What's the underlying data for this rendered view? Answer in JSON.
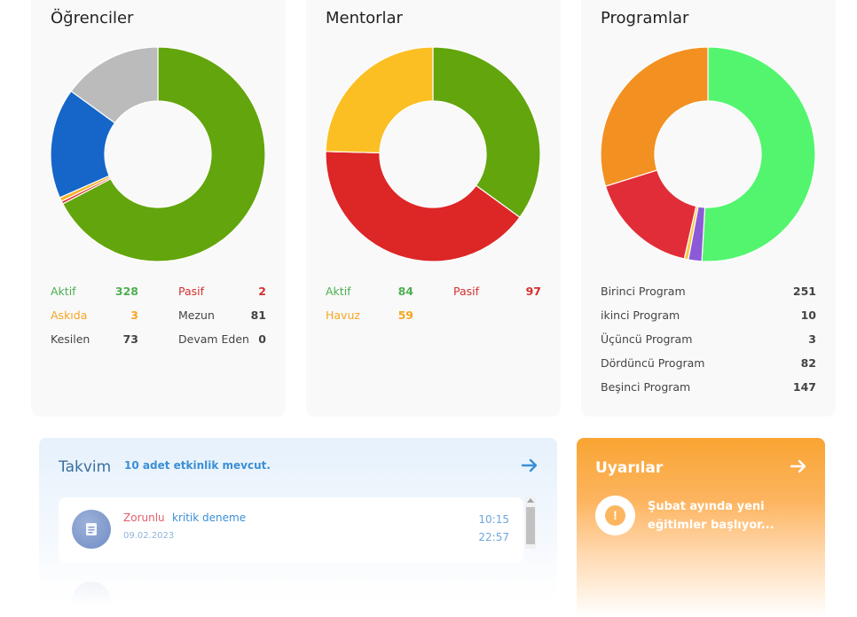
{
  "students": {
    "title": "Öğrenciler",
    "stats": [
      {
        "label": "Aktif",
        "value": "328",
        "color": "#4caf50"
      },
      {
        "label": "Pasif",
        "value": "2",
        "color": "#d32f2f"
      },
      {
        "label": "Askıda",
        "value": "3",
        "color": "#f5a623"
      },
      {
        "label": "Mezun",
        "value": "81",
        "color": "#444444"
      },
      {
        "label": "Kesilen",
        "value": "73",
        "color": "#444444"
      },
      {
        "label": "Devam Eden",
        "value": "0",
        "color": "#444444"
      }
    ],
    "chart_data": {
      "type": "pie",
      "values": [
        328,
        2,
        3,
        81,
        73
      ],
      "colors": [
        "#63a50d",
        "#e02b2b",
        "#f7b32b",
        "#1566c8",
        "#bbbbbb"
      ],
      "start_angle": 0
    }
  },
  "mentors": {
    "title": "Mentorlar",
    "stats": [
      {
        "label": "Aktif",
        "value": "84",
        "color": "#4caf50"
      },
      {
        "label": "Pasif",
        "value": "97",
        "color": "#d32f2f"
      },
      {
        "label": "Havuz",
        "value": "59",
        "color": "#f5a623"
      }
    ],
    "chart_data": {
      "type": "pie",
      "values": [
        84,
        97,
        59
      ],
      "colors": [
        "#63a50d",
        "#dd2626",
        "#fbbf24"
      ],
      "start_angle": 0
    }
  },
  "programs": {
    "title": "Programlar",
    "rows": [
      {
        "label": "Birinci Program",
        "value": "251"
      },
      {
        "label": "ikinci Program",
        "value": "10"
      },
      {
        "label": "Üçüncü Program",
        "value": "3"
      },
      {
        "label": "Dördüncü Program",
        "value": "82"
      },
      {
        "label": "Beşinci Program",
        "value": "147"
      }
    ],
    "chart_data": {
      "type": "pie",
      "values": [
        251,
        10,
        3,
        82,
        147
      ],
      "colors": [
        "#53f56e",
        "#8c5ad7",
        "#f7c948",
        "#e12d38",
        "#f39022"
      ],
      "start_angle": 0
    }
  },
  "calendar": {
    "title": "Takvim",
    "count_text": "10 adet etkinlik mevcut.",
    "arrow_icon": "arrow-right-icon",
    "event": {
      "type": "Zorunlu",
      "name": "kritik deneme",
      "date": "09.02.2023",
      "start": "10:15",
      "end": "22:57",
      "icon": "document-icon"
    }
  },
  "alerts": {
    "title": "Uyarılar",
    "arrow_icon": "arrow-right-icon",
    "message": "Şubat ayında yeni eğitimler başlıyor...",
    "icon": "exclamation-icon"
  }
}
